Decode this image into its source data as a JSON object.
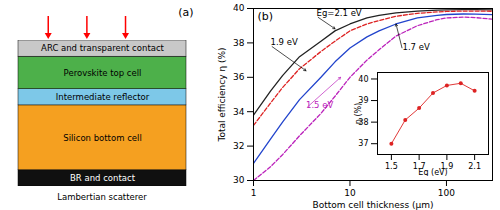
{
  "chart_data": [
    {
      "type": "bar",
      "stacked": true,
      "title": "(a)",
      "xlabel": "Lambertian scatterer",
      "categories": [
        null
      ],
      "series": [
        {
          "name": "BR and contact",
          "color": "#101010",
          "values": [
            0.7
          ]
        },
        {
          "name": "Silicon bottom cell",
          "color": "#f5a020",
          "values": [
            2.8
          ]
        },
        {
          "name": "Intermediate reflector",
          "color": "#7dc8e8",
          "values": [
            0.7
          ]
        },
        {
          "name": "Perovskite top cell",
          "color": "#4db04a",
          "values": [
            1.4
          ]
        },
        {
          "name": "ARC and transparent contact",
          "color": "#c8c8c8",
          "values": [
            0.7
          ]
        }
      ],
      "ylim": [
        0,
        6.3
      ],
      "tick_labels": false
    },
    {
      "type": "line",
      "title": "(b)",
      "xlabel": "Bottom cell thickness (μm)",
      "ylabel": "Total efficiency η (%)",
      "log": "x",
      "x": [
        1,
        1.5,
        2,
        3,
        5,
        7,
        10,
        15,
        20,
        30,
        50,
        80,
        100,
        150,
        200,
        300
      ],
      "series": [
        {
          "color": "#222222",
          "line_style": "solid",
          "values": [
            33.8,
            35.2,
            36.1,
            37.2,
            38.1,
            38.7,
            39.1,
            39.45,
            39.6,
            39.75,
            39.85,
            39.9,
            39.92,
            39.93,
            39.93,
            39.92
          ]
        },
        {
          "color": "#dd2222",
          "line_style": "dashed",
          "values": [
            33.2,
            34.5,
            35.4,
            36.5,
            37.5,
            38.1,
            38.7,
            39.1,
            39.3,
            39.55,
            39.72,
            39.8,
            39.83,
            39.85,
            39.85,
            39.84
          ]
        },
        {
          "color": "#2244cc",
          "line_style": "solid",
          "values": [
            31.0,
            32.4,
            33.4,
            34.7,
            36.0,
            36.9,
            37.7,
            38.35,
            38.7,
            39.1,
            39.45,
            39.6,
            39.65,
            39.68,
            39.67,
            39.64
          ]
        },
        {
          "color": "#bb22bb",
          "line_style": "dashed",
          "values": [
            30.0,
            30.8,
            31.5,
            32.6,
            33.9,
            34.9,
            36.0,
            37.0,
            37.6,
            38.4,
            39.0,
            39.35,
            39.45,
            39.5,
            39.47,
            39.38
          ]
        }
      ],
      "xlim": [
        1,
        300
      ],
      "xticks": [
        1,
        10,
        100
      ],
      "ylim": [
        30,
        40
      ],
      "yticks": [
        30,
        32,
        34,
        36,
        38,
        40
      ],
      "grid": false,
      "annotations": [
        {
          "text": "Eg=2.1 eV",
          "x": 4.5,
          "y": 39.55,
          "arrow_x": 7,
          "arrow_y": 38.82,
          "color": "black"
        },
        {
          "text": "1.9 eV",
          "x": 1.5,
          "y": 37.85,
          "arrow_x": 3.5,
          "arrow_y": 36.38,
          "color": "black"
        },
        {
          "text": "1.7 eV",
          "x": 35,
          "y": 37.6,
          "arrow_x": 30,
          "arrow_y": 39.1,
          "color": "black"
        },
        {
          "text": "1.5 eV",
          "x": 3.5,
          "y": 34.2,
          "arrow_x": 8,
          "arrow_y": 36.0,
          "color": "#bb22bb"
        }
      ]
    },
    {
      "type": "line",
      "xlabel": "Eg (eV)",
      "ylabel": "η (%)",
      "x": [
        1.5,
        1.6,
        1.7,
        1.8,
        1.9,
        2.0,
        2.1
      ],
      "values": [
        37.0,
        38.1,
        38.65,
        39.35,
        39.7,
        39.8,
        39.45
      ],
      "color": "#dd2222",
      "marker": "o",
      "xlim": [
        1.4,
        2.2
      ],
      "xticks": [
        1.5,
        1.7,
        1.9,
        2.1
      ],
      "ylim": [
        36.5,
        40.3
      ],
      "yticks": [
        37,
        38,
        39,
        40
      ]
    }
  ]
}
